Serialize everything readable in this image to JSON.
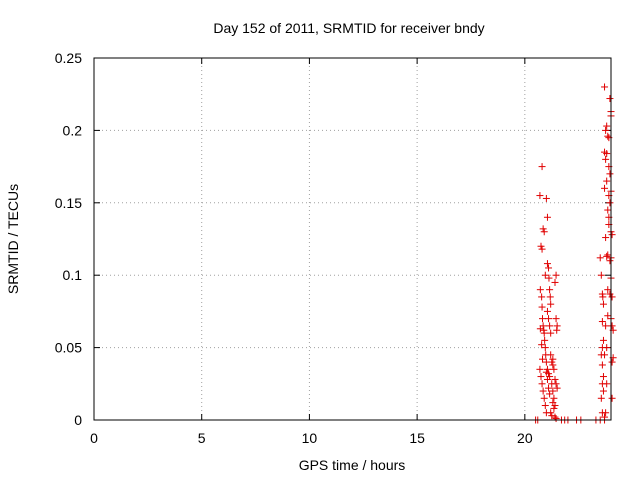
{
  "chart_data": {
    "type": "scatter",
    "title": "Day 152 of 2011, SRMTID for receiver bndy",
    "xlabel": "GPS time / hours",
    "ylabel": "SRMTID / TECUs",
    "xlim": [
      0,
      24
    ],
    "ylim": [
      0,
      0.25
    ],
    "x_ticks": [
      0,
      5,
      10,
      15,
      20
    ],
    "x_tick_labels": [
      "0",
      "5",
      "10",
      "15",
      "20"
    ],
    "y_ticks": [
      0,
      0.05,
      0.1,
      0.15,
      0.2,
      0.25
    ],
    "y_tick_labels": [
      "0",
      "0.05",
      "0.1",
      "0.15",
      "0.2",
      "0.25"
    ],
    "grid": true,
    "marker": "+",
    "color": "#e00000",
    "points": [
      [
        20.5,
        0.0
      ],
      [
        20.6,
        0.0
      ],
      [
        21.7,
        0.0
      ],
      [
        21.85,
        0.0
      ],
      [
        22.0,
        0.0
      ],
      [
        22.4,
        0.0
      ],
      [
        22.6,
        0.0
      ],
      [
        23.3,
        0.0
      ],
      [
        23.5,
        0.0
      ],
      [
        23.7,
        0.0
      ],
      [
        20.7,
        0.155
      ],
      [
        20.75,
        0.12
      ],
      [
        20.8,
        0.175
      ],
      [
        20.8,
        0.118
      ],
      [
        20.85,
        0.132
      ],
      [
        20.9,
        0.13
      ],
      [
        20.95,
        0.1
      ],
      [
        21.0,
        0.153
      ],
      [
        21.05,
        0.14
      ],
      [
        20.72,
        0.09
      ],
      [
        20.78,
        0.085
      ],
      [
        20.8,
        0.078
      ],
      [
        20.82,
        0.07
      ],
      [
        20.85,
        0.065
      ],
      [
        20.88,
        0.062
      ],
      [
        20.9,
        0.06
      ],
      [
        20.92,
        0.055
      ],
      [
        20.95,
        0.05
      ],
      [
        20.97,
        0.045
      ],
      [
        21.0,
        0.04
      ],
      [
        20.7,
        0.035
      ],
      [
        20.75,
        0.03
      ],
      [
        20.8,
        0.025
      ],
      [
        20.85,
        0.02
      ],
      [
        20.9,
        0.015
      ],
      [
        20.95,
        0.01
      ],
      [
        21.0,
        0.005
      ],
      [
        20.72,
        0.063
      ],
      [
        20.78,
        0.052
      ],
      [
        20.82,
        0.042
      ],
      [
        21.05,
        0.108
      ],
      [
        21.1,
        0.105
      ],
      [
        21.12,
        0.098
      ],
      [
        21.15,
        0.09
      ],
      [
        21.18,
        0.085
      ],
      [
        21.2,
        0.08
      ],
      [
        21.05,
        0.075
      ],
      [
        21.1,
        0.07
      ],
      [
        21.15,
        0.065
      ],
      [
        21.2,
        0.06
      ],
      [
        21.05,
        0.035
      ],
      [
        21.1,
        0.032
      ],
      [
        21.15,
        0.03
      ],
      [
        21.2,
        0.045
      ],
      [
        21.25,
        0.04
      ],
      [
        21.3,
        0.038
      ],
      [
        21.25,
        0.025
      ],
      [
        21.3,
        0.02
      ],
      [
        21.35,
        0.015
      ],
      [
        21.4,
        0.01
      ],
      [
        21.2,
        0.005
      ],
      [
        21.25,
        0.003
      ],
      [
        21.3,
        0.012
      ],
      [
        21.35,
        0.008
      ],
      [
        21.4,
        0.002
      ],
      [
        21.45,
        0.001
      ],
      [
        21.15,
        0.018
      ],
      [
        21.1,
        0.022
      ],
      [
        21.05,
        0.028
      ],
      [
        21.0,
        0.033
      ],
      [
        21.45,
        0.1
      ],
      [
        21.4,
        0.095
      ],
      [
        21.45,
        0.07
      ],
      [
        21.5,
        0.065
      ],
      [
        21.48,
        0.062
      ],
      [
        21.4,
        0.028
      ],
      [
        21.45,
        0.025
      ],
      [
        21.5,
        0.022
      ],
      [
        21.35,
        0.035
      ],
      [
        21.3,
        0.042
      ],
      [
        23.5,
        0.112
      ],
      [
        23.55,
        0.1
      ],
      [
        23.6,
        0.087
      ],
      [
        23.62,
        0.085
      ],
      [
        23.65,
        0.08
      ],
      [
        23.6,
        0.068
      ],
      [
        23.65,
        0.055
      ],
      [
        23.6,
        0.05
      ],
      [
        23.55,
        0.045
      ],
      [
        23.6,
        0.038
      ],
      [
        23.65,
        0.03
      ],
      [
        23.6,
        0.025
      ],
      [
        23.65,
        0.02
      ],
      [
        23.55,
        0.015
      ],
      [
        23.6,
        0.005
      ],
      [
        23.7,
        0.002
      ],
      [
        23.75,
        0.126
      ],
      [
        23.8,
        0.113
      ],
      [
        23.85,
        0.114
      ],
      [
        23.7,
        0.16
      ],
      [
        23.75,
        0.18
      ],
      [
        23.8,
        0.184
      ],
      [
        23.7,
        0.185
      ],
      [
        23.75,
        0.2
      ],
      [
        23.8,
        0.203
      ],
      [
        23.7,
        0.23
      ],
      [
        23.85,
        0.196
      ],
      [
        23.9,
        0.195
      ],
      [
        23.95,
        0.222
      ],
      [
        24.0,
        0.213
      ],
      [
        24.0,
        0.21
      ],
      [
        23.9,
        0.175
      ],
      [
        23.95,
        0.17
      ],
      [
        24.0,
        0.158
      ],
      [
        23.9,
        0.155
      ],
      [
        23.95,
        0.15
      ],
      [
        23.85,
        0.145
      ],
      [
        23.9,
        0.14
      ],
      [
        24.0,
        0.13
      ],
      [
        24.05,
        0.128
      ],
      [
        24.0,
        0.112
      ],
      [
        23.95,
        0.11
      ],
      [
        24.0,
        0.098
      ],
      [
        23.95,
        0.087
      ],
      [
        24.05,
        0.085
      ],
      [
        24.0,
        0.07
      ],
      [
        24.05,
        0.065
      ],
      [
        24.1,
        0.062
      ],
      [
        24.05,
        0.04
      ],
      [
        24.1,
        0.043
      ],
      [
        24.05,
        0.015
      ],
      [
        23.8,
        0.05
      ],
      [
        23.85,
        0.09
      ],
      [
        23.75,
        0.065
      ],
      [
        23.9,
        0.135
      ],
      [
        23.8,
        0.165
      ],
      [
        23.75,
        0.005
      ],
      [
        23.7,
        0.045
      ],
      [
        23.8,
        0.025
      ],
      [
        23.85,
        0.072
      ]
    ]
  }
}
